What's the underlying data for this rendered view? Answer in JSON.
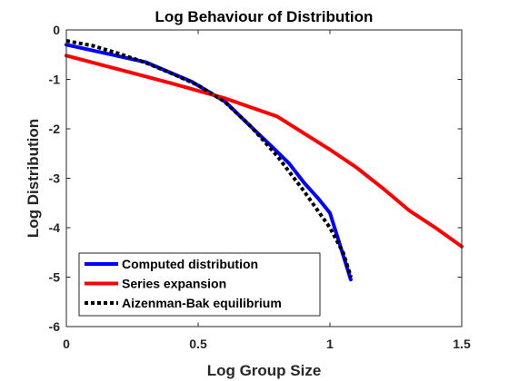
{
  "chart_data": {
    "type": "line",
    "title": "Log Behaviour of Distribution",
    "xlabel": "Log Group Size",
    "ylabel": "Log Distribution",
    "xlim": [
      0,
      1.5
    ],
    "ylim": [
      -6,
      0
    ],
    "xticks": [
      0,
      0.5,
      1,
      1.5
    ],
    "xtick_labels": [
      "0",
      "0.5",
      "1",
      "1.5"
    ],
    "yticks": [
      0,
      -1,
      -2,
      -3,
      -4,
      -5,
      -6
    ],
    "ytick_labels": [
      "0",
      "-1",
      "-2",
      "-3",
      "-4",
      "-5",
      "-6"
    ],
    "grid": false,
    "legend_position": "bottom-left",
    "series": [
      {
        "name": "Computed distribution",
        "color": "#0000FF",
        "style": "solid",
        "points": [
          [
            0,
            -0.3
          ],
          [
            0.3,
            -0.65
          ],
          [
            0.477,
            -1.05
          ],
          [
            0.602,
            -1.45
          ],
          [
            0.699,
            -1.95
          ],
          [
            0.778,
            -2.35
          ],
          [
            0.845,
            -2.7
          ],
          [
            0.903,
            -3.1
          ],
          [
            0.954,
            -3.4
          ],
          [
            1.0,
            -3.7
          ],
          [
            1.041,
            -4.4
          ],
          [
            1.079,
            -5.05
          ]
        ]
      },
      {
        "name": "Series expansion",
        "color": "#FF0000",
        "style": "solid",
        "points": [
          [
            0,
            -0.52
          ],
          [
            0.2,
            -0.8
          ],
          [
            0.4,
            -1.08
          ],
          [
            0.6,
            -1.38
          ],
          [
            0.8,
            -1.75
          ],
          [
            1.0,
            -2.42
          ],
          [
            1.1,
            -2.78
          ],
          [
            1.2,
            -3.2
          ],
          [
            1.3,
            -3.65
          ],
          [
            1.4,
            -4.0
          ],
          [
            1.5,
            -4.38
          ]
        ]
      },
      {
        "name": "Aizenman-Bak equilibrium",
        "color": "#000000",
        "style": "dotted",
        "points": [
          [
            0,
            -0.22
          ],
          [
            0.1,
            -0.32
          ],
          [
            0.2,
            -0.48
          ],
          [
            0.3,
            -0.66
          ],
          [
            0.4,
            -0.88
          ],
          [
            0.5,
            -1.12
          ],
          [
            0.6,
            -1.45
          ],
          [
            0.7,
            -1.95
          ],
          [
            0.8,
            -2.55
          ],
          [
            0.9,
            -3.25
          ],
          [
            1.0,
            -4.0
          ],
          [
            1.05,
            -4.5
          ],
          [
            1.08,
            -5.0
          ]
        ]
      }
    ]
  }
}
